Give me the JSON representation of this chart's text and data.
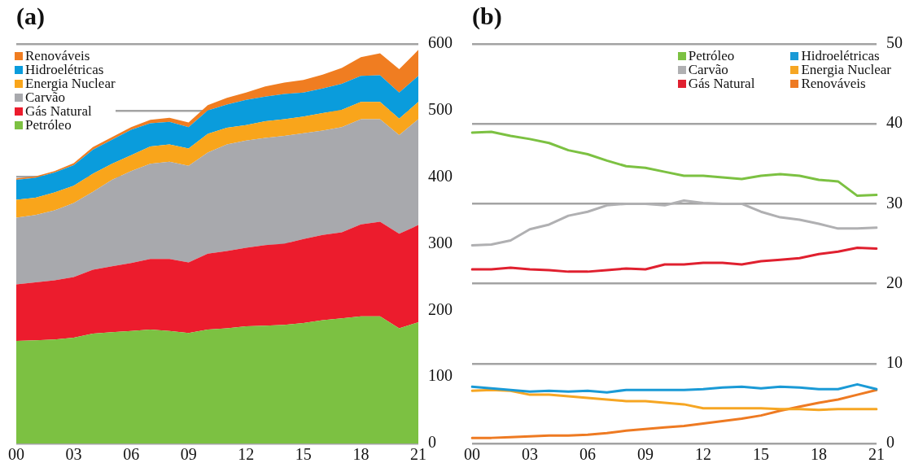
{
  "chart_data": [
    {
      "type": "area",
      "title": "(a)",
      "stacked": true,
      "legend": "top left",
      "grid": "y",
      "marker": "none",
      "categories": [
        "00",
        null,
        null,
        "03",
        null,
        null,
        "06",
        null,
        null,
        "09",
        null,
        null,
        "12",
        null,
        null,
        "15",
        null,
        null,
        "18",
        null,
        null,
        "21"
      ],
      "ylim": [
        0,
        600
      ],
      "yticks": [
        0,
        100,
        200,
        300,
        400,
        500,
        600
      ],
      "series": [
        {
          "name": "Petróleo",
          "color": "#7cc142",
          "values": [
            154,
            155,
            156,
            159,
            165,
            167,
            169,
            171,
            169,
            166,
            171,
            173,
            176,
            177,
            178,
            181,
            185,
            188,
            191,
            191,
            173,
            182
          ]
        },
        {
          "name": "Gás Natural",
          "color": "#ec1c2d",
          "values": [
            85,
            87,
            89,
            91,
            96,
            99,
            102,
            106,
            108,
            106,
            114,
            116,
            118,
            121,
            122,
            126,
            128,
            129,
            138,
            142,
            142,
            146
          ]
        },
        {
          "name": "Carvão",
          "color": "#a8a9ad",
          "values": [
            100,
            101,
            105,
            111,
            117,
            130,
            138,
            143,
            146,
            145,
            152,
            160,
            161,
            161,
            162,
            159,
            157,
            158,
            158,
            154,
            148,
            159
          ]
        },
        {
          "name": "Energia Nuclear",
          "color": "#f9a51b",
          "values": [
            27,
            26,
            27,
            26,
            27,
            24,
            24,
            26,
            26,
            26,
            28,
            25,
            23,
            25,
            25,
            25,
            26,
            26,
            26,
            26,
            25,
            26
          ]
        },
        {
          "name": "Hidroelétricas",
          "color": "#0a9cdc",
          "values": [
            30,
            30,
            30,
            31,
            36,
            36,
            38,
            35,
            34,
            32,
            35,
            35,
            38,
            37,
            38,
            36,
            37,
            39,
            39,
            40,
            39,
            39
          ]
        },
        {
          "name": "Renováveis",
          "color": "#f07d21",
          "values": [
            2,
            2,
            2,
            3,
            4,
            4,
            4,
            5,
            6,
            7,
            8,
            10,
            11,
            15,
            17,
            19,
            21,
            24,
            28,
            33,
            35,
            39
          ]
        }
      ]
    },
    {
      "type": "line",
      "title": "(b)",
      "legend": "top right",
      "grid": "y",
      "marker": "none",
      "categories": [
        "00",
        null,
        null,
        "03",
        null,
        null,
        "06",
        null,
        null,
        "09",
        null,
        null,
        "12",
        null,
        null,
        "15",
        null,
        null,
        "18",
        null,
        null,
        "21"
      ],
      "ylim": [
        0,
        50
      ],
      "yticks": [
        0,
        10,
        20,
        30,
        40,
        50
      ],
      "series": [
        {
          "name": "Petróleo",
          "color": "#7cc142",
          "values": [
            38.9,
            39.0,
            38.5,
            38.1,
            37.6,
            36.7,
            36.2,
            35.4,
            34.7,
            34.5,
            34.0,
            33.5,
            33.5,
            33.3,
            33.1,
            33.5,
            33.7,
            33.5,
            33.0,
            32.8,
            31.0,
            31.1
          ]
        },
        {
          "name": "Carvão",
          "color": "#b0b0b2",
          "values": [
            24.8,
            24.9,
            25.4,
            26.8,
            27.4,
            28.5,
            29.0,
            29.8,
            30.0,
            30.0,
            29.8,
            30.4,
            30.1,
            30.0,
            30.0,
            29.0,
            28.3,
            28.0,
            27.5,
            26.9,
            26.9,
            27.0
          ]
        },
        {
          "name": "Gás Natural",
          "color": "#e0202f",
          "values": [
            21.8,
            21.8,
            22.0,
            21.8,
            21.7,
            21.5,
            21.5,
            21.7,
            21.9,
            21.8,
            22.4,
            22.4,
            22.6,
            22.6,
            22.4,
            22.8,
            23.0,
            23.2,
            23.7,
            24.0,
            24.5,
            24.4
          ]
        },
        {
          "name": "Hidroelétricas",
          "color": "#1a9ad6",
          "values": [
            7.1,
            6.9,
            6.7,
            6.5,
            6.6,
            6.5,
            6.6,
            6.4,
            6.7,
            6.7,
            6.7,
            6.7,
            6.8,
            7.0,
            7.1,
            6.9,
            7.1,
            7.0,
            6.8,
            6.8,
            7.4,
            6.8
          ]
        },
        {
          "name": "Energia Nuclear",
          "color": "#f6a623",
          "values": [
            6.6,
            6.7,
            6.6,
            6.1,
            6.1,
            5.9,
            5.7,
            5.5,
            5.3,
            5.3,
            5.1,
            4.9,
            4.4,
            4.4,
            4.4,
            4.4,
            4.3,
            4.3,
            4.2,
            4.3,
            4.3,
            4.3
          ]
        },
        {
          "name": "Renováveis",
          "color": "#ee7a22",
          "values": [
            0.7,
            0.7,
            0.8,
            0.9,
            1.0,
            1.0,
            1.1,
            1.3,
            1.6,
            1.8,
            2.0,
            2.2,
            2.5,
            2.8,
            3.1,
            3.5,
            4.1,
            4.6,
            5.1,
            5.5,
            6.1,
            6.7
          ]
        }
      ]
    }
  ]
}
